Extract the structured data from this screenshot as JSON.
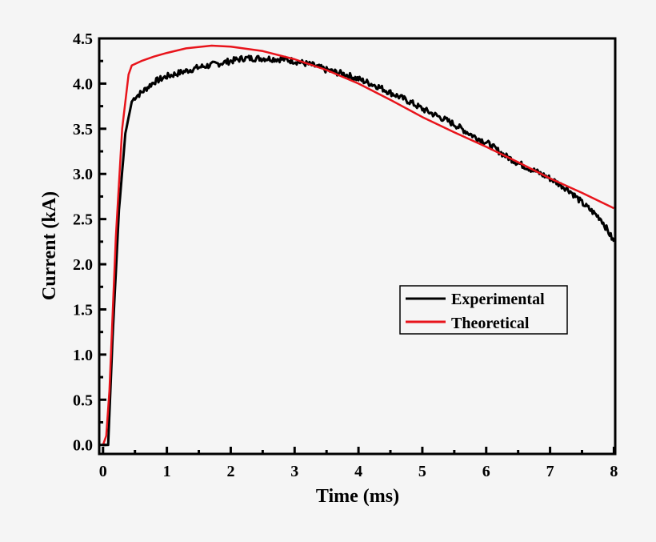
{
  "chart_data": {
    "type": "line",
    "title": "",
    "xlabel": "Time (ms)",
    "ylabel": "Current (kA)",
    "xlim": [
      -0.06,
      8.02
    ],
    "ylim": [
      -0.1,
      4.5
    ],
    "xticks": [
      "0",
      "1",
      "2",
      "3",
      "4",
      "5",
      "6",
      "7",
      "8"
    ],
    "yticks": [
      "0.0",
      "0.5",
      "1.0",
      "1.5",
      "2.0",
      "2.5",
      "3.0",
      "3.5",
      "4.0",
      "4.5"
    ],
    "grid": false,
    "legend_position": "center-right",
    "series": [
      {
        "name": "Experimental",
        "color": "#000000",
        "x": [
          0,
          0.08,
          0.15,
          0.25,
          0.35,
          0.45,
          0.5,
          0.6,
          0.8,
          1.0,
          1.2,
          1.5,
          1.8,
          2.0,
          2.2,
          2.5,
          2.8,
          3.0,
          3.3,
          3.5,
          3.8,
          4.0,
          4.3,
          4.5,
          4.8,
          5.0,
          5.3,
          5.5,
          5.8,
          6.0,
          6.3,
          6.5,
          6.8,
          7.0,
          7.3,
          7.5,
          7.8,
          8.0
        ],
        "y": [
          0,
          0,
          1.2,
          2.6,
          3.45,
          3.8,
          3.85,
          3.9,
          4.02,
          4.08,
          4.12,
          4.18,
          4.22,
          4.25,
          4.28,
          4.28,
          4.27,
          4.25,
          4.2,
          4.15,
          4.1,
          4.05,
          3.97,
          3.9,
          3.8,
          3.72,
          3.62,
          3.55,
          3.42,
          3.35,
          3.2,
          3.12,
          3.02,
          2.95,
          2.82,
          2.68,
          2.5,
          2.25
        ]
      },
      {
        "name": "Theoretical",
        "color": "#e8141b",
        "x": [
          0,
          0.05,
          0.1,
          0.2,
          0.3,
          0.4,
          0.45,
          0.6,
          0.8,
          1.0,
          1.3,
          1.7,
          2.0,
          2.5,
          3.0,
          3.5,
          4.0,
          4.5,
          5.0,
          5.5,
          6.0,
          6.5,
          7.0,
          7.5,
          8.0
        ],
        "y": [
          0,
          0.1,
          0.6,
          2.3,
          3.5,
          4.1,
          4.2,
          4.25,
          4.3,
          4.34,
          4.39,
          4.42,
          4.41,
          4.36,
          4.27,
          4.15,
          4.0,
          3.82,
          3.63,
          3.46,
          3.3,
          3.13,
          2.95,
          2.79,
          2.62
        ]
      }
    ]
  }
}
